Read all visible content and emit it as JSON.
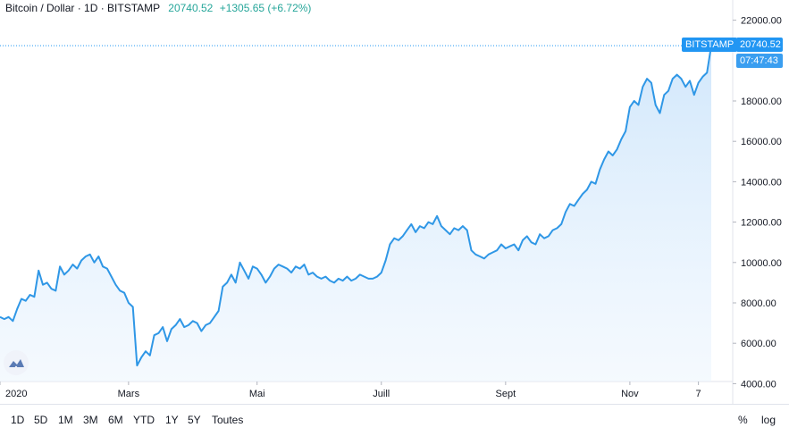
{
  "header": {
    "symbol": "Bitcoin / Dollar · 1D · BITSTAMP",
    "last_price": "20740.52",
    "change": "+1305.65 (+6.72%)"
  },
  "badges": {
    "exchange": "BITSTAMP",
    "price": "20740.52",
    "countdown": "07:47:43"
  },
  "ranges": [
    "1D",
    "5D",
    "1M",
    "3M",
    "6M",
    "YTD",
    "1Y",
    "5Y",
    "Toutes"
  ],
  "scale_options": {
    "percent": "%",
    "log": "log"
  },
  "colors": {
    "line": "#2f97e6",
    "fill_top": "#cfe6fb",
    "accent": "#2196f3",
    "positive": "#26a69a"
  },
  "chart_data": {
    "type": "area",
    "series": [
      {
        "values": [
          7300,
          7200,
          7300,
          7100,
          7700,
          8200,
          8100,
          8400,
          8300,
          9600,
          8900,
          9000,
          8700,
          8600,
          9800,
          9400,
          9600,
          9900,
          9700,
          10100,
          10300,
          10400,
          10000,
          10300,
          9800,
          9700,
          9300,
          8900,
          8600,
          8500,
          8000,
          7800,
          4900,
          5300,
          5600,
          5400,
          6400,
          6500,
          6800,
          6100,
          6700,
          6900,
          7200,
          6800,
          6900,
          7100,
          7000,
          6600,
          6900,
          7000,
          7300,
          7600,
          8800,
          9000,
          9400,
          9000,
          10000,
          9600,
          9200,
          9800,
          9700,
          9400,
          9000,
          9300,
          9700,
          9900,
          9800,
          9700,
          9500,
          9800,
          9700,
          9900,
          9400,
          9500,
          9300,
          9200,
          9300,
          9100,
          9000,
          9200,
          9100,
          9300,
          9100,
          9200,
          9400,
          9300,
          9200,
          9200,
          9300,
          9500,
          10100,
          10900,
          11200,
          11100,
          11300,
          11600,
          11900,
          11500,
          11800,
          11700,
          12000,
          11900,
          12300,
          11800,
          11600,
          11400,
          11700,
          11600,
          11800,
          11600,
          10600,
          10400,
          10300,
          10200,
          10400,
          10500,
          10600,
          10900,
          10700,
          10800,
          10900,
          10600,
          11100,
          11300,
          11000,
          10900,
          11400,
          11200,
          11300,
          11600,
          11700,
          11900,
          12500,
          12900,
          12800,
          13100,
          13400,
          13600,
          14000,
          13900,
          14600,
          15100,
          15500,
          15300,
          15600,
          16100,
          16500,
          17700,
          18000,
          17800,
          18700,
          19100,
          18900,
          17800,
          17400,
          18300,
          18500,
          19100,
          19300,
          19100,
          18700,
          19000,
          18300,
          18900,
          19200,
          19400,
          20740.52
        ]
      }
    ],
    "x_ticks": [
      {
        "label": "2020",
        "index": 0
      },
      {
        "label": "Mars",
        "index": 30
      },
      {
        "label": "Mai",
        "index": 60
      },
      {
        "label": "Juill",
        "index": 89
      },
      {
        "label": "Sept",
        "index": 118
      },
      {
        "label": "Nov",
        "index": 147
      },
      {
        "label": "7",
        "index": 163
      }
    ],
    "y_ticks": [
      4000,
      6000,
      8000,
      10000,
      12000,
      14000,
      16000,
      18000,
      22000
    ],
    "y_tick_labels": [
      "4000.00",
      "6000.00",
      "8000.00",
      "10000.00",
      "12000.00",
      "14000.00",
      "16000.00",
      "18000.00",
      "22000.00"
    ],
    "ylim": [
      3000,
      23000
    ],
    "last_value": 20740.52,
    "grid": false,
    "scale": "linear"
  }
}
